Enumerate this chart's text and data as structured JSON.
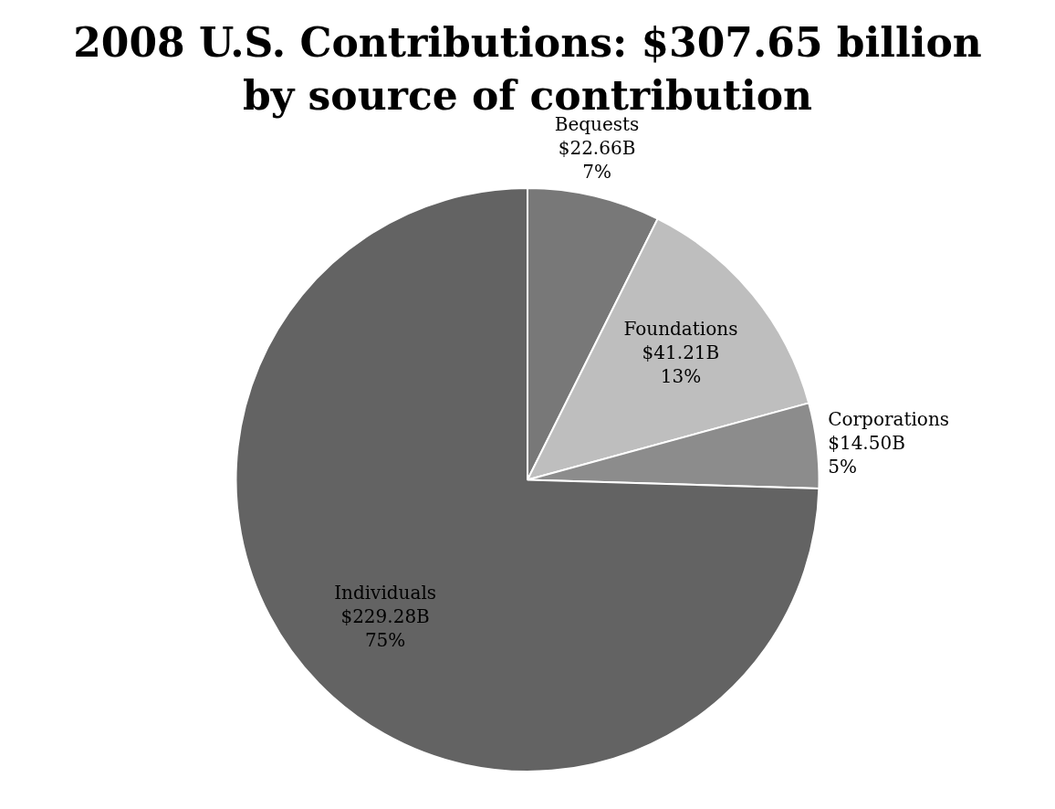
{
  "chart_data": {
    "type": "pie",
    "title": "2008 U.S. Contributions: $307.65 billion\nby source of contribution",
    "categories": [
      "Bequests",
      "Foundations",
      "Corporations",
      "Individuals"
    ],
    "values": [
      22.66,
      41.21,
      14.5,
      229.28
    ],
    "value_labels": [
      "$22.66B",
      "$41.21B",
      "$14.50B",
      "$229.28B"
    ],
    "annotations": [
      "7%",
      "13%",
      "5%",
      "75%"
    ],
    "colors": [
      "#787878",
      "#bebebe",
      "#8c8c8c",
      "#636363"
    ],
    "legend": false
  }
}
